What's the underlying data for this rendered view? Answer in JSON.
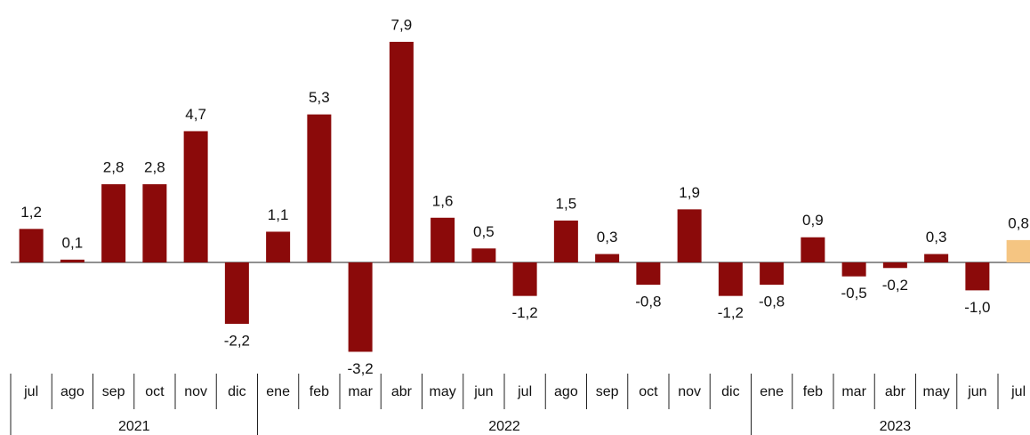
{
  "chart_data": {
    "type": "bar",
    "groups": [
      {
        "label": "2021",
        "categories": [
          "jul",
          "ago",
          "sep",
          "oct",
          "nov",
          "dic"
        ],
        "values": [
          1.2,
          0.1,
          2.8,
          2.8,
          4.7,
          -2.2
        ],
        "value_labels": [
          "1,2",
          "0,1",
          "2,8",
          "2,8",
          "4,7",
          "-2,2"
        ],
        "colors": [
          "#8b0a0a",
          "#8b0a0a",
          "#8b0a0a",
          "#8b0a0a",
          "#8b0a0a",
          "#8b0a0a"
        ]
      },
      {
        "label": "2022",
        "categories": [
          "ene",
          "feb",
          "mar",
          "abr",
          "may",
          "jun",
          "jul",
          "ago",
          "sep",
          "oct",
          "nov",
          "dic"
        ],
        "values": [
          1.1,
          5.3,
          -3.2,
          7.9,
          1.6,
          0.5,
          -1.2,
          1.5,
          0.3,
          -0.8,
          1.9,
          -1.2
        ],
        "value_labels": [
          "1,1",
          "5,3",
          "-3,2",
          "7,9",
          "1,6",
          "0,5",
          "-1,2",
          "1,5",
          "0,3",
          "-0,8",
          "1,9",
          "-1,2"
        ],
        "colors": [
          "#8b0a0a",
          "#8b0a0a",
          "#8b0a0a",
          "#8b0a0a",
          "#8b0a0a",
          "#8b0a0a",
          "#8b0a0a",
          "#8b0a0a",
          "#8b0a0a",
          "#8b0a0a",
          "#8b0a0a",
          "#8b0a0a"
        ]
      },
      {
        "label": "2023",
        "categories": [
          "ene",
          "feb",
          "mar",
          "abr",
          "may",
          "jun",
          "jul"
        ],
        "values": [
          -0.8,
          0.9,
          -0.5,
          -0.2,
          0.3,
          -1.0,
          0.8
        ],
        "value_labels": [
          "-0,8",
          "0,9",
          "-0,5",
          "-0,2",
          "0,3",
          "-1,0",
          "0,8"
        ],
        "colors": [
          "#8b0a0a",
          "#8b0a0a",
          "#8b0a0a",
          "#8b0a0a",
          "#8b0a0a",
          "#8b0a0a",
          "#f5c582"
        ]
      }
    ]
  }
}
